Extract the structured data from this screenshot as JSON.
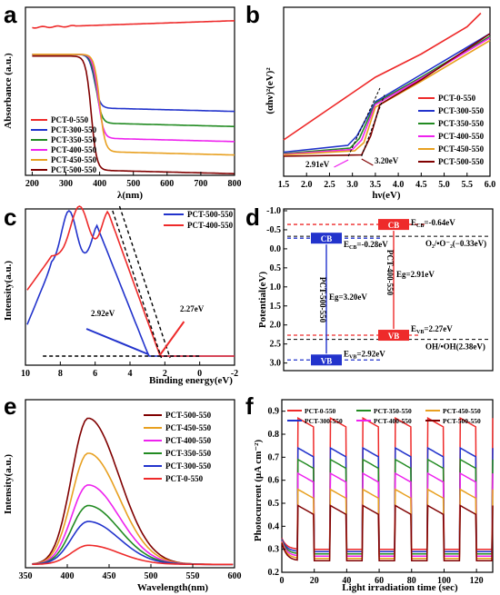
{
  "panels": {
    "a": {
      "letter": "a",
      "xlabel": "λ(nm)",
      "ylabel": "Absorbance (a.u.)",
      "xticks": [
        "200",
        "300",
        "400",
        "500",
        "600",
        "700",
        "800"
      ]
    },
    "b": {
      "letter": "b",
      "xlabel": "hν(eV)",
      "ylabel": "(αhν)²(eV)²",
      "xticks": [
        "1.5",
        "2.0",
        "2.5",
        "3.0",
        "3.5",
        "4.0",
        "4.5",
        "5.0",
        "5.5",
        "6.0"
      ],
      "ann1": "2.91eV",
      "ann2": "3.20eV"
    },
    "c": {
      "letter": "c",
      "xlabel": "Binding energy(eV)",
      "ylabel": "Intensity(a.u.)",
      "xticks": [
        "10",
        "8",
        "6",
        "4",
        "2",
        "0",
        "-2"
      ],
      "ann1": "2.92eV",
      "ann2": "2.27eV"
    },
    "d": {
      "letter": "d",
      "ylabel": "Potential(eV)",
      "yticks": [
        "-1.0",
        "-0.5",
        "0.0",
        "0.5",
        "1.0",
        "1.5",
        "2.0",
        "2.5",
        "3.0"
      ],
      "cb": "CB",
      "vb": "VB",
      "ecb1": "E",
      "ecb1sub": "CB",
      "ecb1val": "=-0.64eV",
      "ecb2": "E",
      "ecb2sub": "CB",
      "ecb2val": "=-0.28eV",
      "evb1": "E",
      "evb1sub": "VB",
      "evb1val": "=2.27eV",
      "evb2": "E",
      "evb2sub": "VB",
      "evb2val": "=2.92eV",
      "eg1": "Eg=3.20eV",
      "eg2": "Eg=2.91eV",
      "s1": "PCT-500-550",
      "s2": "PCT-400-550",
      "o2": "O₂/•O⁻₂(−0.33eV)",
      "oh": "OH/•OH(2.38eV)"
    },
    "e": {
      "letter": "e",
      "xlabel": "Wavelength(nm)",
      "ylabel": "Intensity(a.u.)",
      "xticks": [
        "350",
        "400",
        "450",
        "500",
        "550",
        "600"
      ]
    },
    "f": {
      "letter": "f",
      "xlabel": "Light irradiation time (sec)",
      "ylabel": "Photocurrent (μA cm⁻²)",
      "xticks": [
        "0",
        "20",
        "40",
        "60",
        "80",
        "100",
        "120"
      ],
      "yticks": [
        "0.2",
        "0.3",
        "0.4",
        "0.5",
        "0.6",
        "0.7",
        "0.8",
        "0.9"
      ]
    }
  },
  "chart_data": [
    {
      "type": "line",
      "panel": "a",
      "xlabel": "λ(nm)",
      "ylabel": "Absorbance (a.u.)",
      "xlim": [
        180,
        800
      ],
      "series": [
        {
          "name": "PCT-0-550",
          "color": "#ee2a2a",
          "plateau": 0.88,
          "tail": 0.92,
          "edge": null
        },
        {
          "name": "PCT-300-550",
          "color": "#2233cc",
          "plateau": 0.72,
          "tail": 0.4,
          "edge": 385
        },
        {
          "name": "PCT-350-550",
          "color": "#228b22",
          "plateau": 0.72,
          "tail": 0.31,
          "edge": 390
        },
        {
          "name": "PCT-400-550",
          "color": "#ee22ee",
          "plateau": 0.72,
          "tail": 0.22,
          "edge": 395
        },
        {
          "name": "PCT-450-550",
          "color": "#e8a020",
          "plateau": 0.72,
          "tail": 0.14,
          "edge": 400
        },
        {
          "name": "PCT-500-550",
          "color": "#800000",
          "plateau": 0.71,
          "tail": 0.03,
          "edge": 375
        }
      ]
    },
    {
      "type": "line",
      "panel": "b",
      "xlabel": "hν(eV)",
      "xlim": [
        1.5,
        6.0
      ],
      "series": [
        {
          "name": "PCT-0-550",
          "color": "#ee2a2a",
          "points": [
            [
              1.5,
              0.12
            ],
            [
              2.5,
              0.35
            ],
            [
              3.5,
              0.58
            ],
            [
              4.5,
              0.75
            ],
            [
              5.5,
              0.95
            ],
            [
              5.8,
              1.05
            ]
          ]
        },
        {
          "name": "PCT-300-550",
          "color": "#2233cc",
          "points": [
            [
              1.5,
              0.03
            ],
            [
              2.9,
              0.08
            ],
            [
              3.1,
              0.15
            ],
            [
              3.5,
              0.4
            ],
            [
              4.5,
              0.6
            ],
            [
              6.0,
              0.9
            ]
          ]
        },
        {
          "name": "PCT-350-550",
          "color": "#228b22",
          "points": [
            [
              1.5,
              0.02
            ],
            [
              2.95,
              0.06
            ],
            [
              3.15,
              0.13
            ],
            [
              3.5,
              0.39
            ],
            [
              4.5,
              0.58
            ],
            [
              6.0,
              0.88
            ]
          ]
        },
        {
          "name": "PCT-400-550",
          "color": "#ee22ee",
          "points": [
            [
              1.5,
              0.015
            ],
            [
              3.0,
              0.05
            ],
            [
              3.2,
              0.12
            ],
            [
              3.5,
              0.38
            ],
            [
              4.5,
              0.57
            ],
            [
              6.0,
              0.87
            ]
          ]
        },
        {
          "name": "PCT-450-550",
          "color": "#e8a020",
          "points": [
            [
              1.5,
              0.01
            ],
            [
              3.05,
              0.04
            ],
            [
              3.25,
              0.1
            ],
            [
              3.5,
              0.36
            ],
            [
              4.5,
              0.55
            ],
            [
              6.0,
              0.85
            ]
          ]
        },
        {
          "name": "PCT-500-550",
          "color": "#800000",
          "points": [
            [
              1.5,
              0.0
            ],
            [
              3.2,
              0.01
            ],
            [
              3.4,
              0.15
            ],
            [
              3.6,
              0.38
            ],
            [
              4.5,
              0.56
            ],
            [
              6.0,
              0.9
            ]
          ]
        }
      ]
    },
    {
      "type": "line",
      "panel": "c",
      "xlabel": "Binding energy(eV)",
      "xlim": [
        10,
        -2
      ],
      "series": [
        {
          "name": "PCT-500-550",
          "color": "#2233cc"
        },
        {
          "name": "PCT-400-550",
          "color": "#ee2a2a"
        }
      ]
    },
    {
      "type": "diagram",
      "panel": "d",
      "ylabel": "Potential(eV)",
      "ylim": [
        -1.0,
        3.2
      ],
      "levels": {
        "cb_500": -0.28,
        "vb_500": 2.92,
        "cb_400": -0.64,
        "vb_400": 2.27,
        "o2": -0.33,
        "oh": 2.38
      }
    },
    {
      "type": "line",
      "panel": "e",
      "xlabel": "Wavelength(nm)",
      "xlim": [
        350,
        600
      ],
      "peak_x": 425,
      "series": [
        {
          "name": "PCT-500-550",
          "color": "#800000",
          "peak": 0.92
        },
        {
          "name": "PCT-450-550",
          "color": "#e8a020",
          "peak": 0.7
        },
        {
          "name": "PCT-400-550",
          "color": "#ee22ee",
          "peak": 0.5
        },
        {
          "name": "PCT-350-550",
          "color": "#228b22",
          "peak": 0.37
        },
        {
          "name": "PCT-300-550",
          "color": "#2233cc",
          "peak": 0.27
        },
        {
          "name": "PCT-0-550",
          "color": "#ee2a2a",
          "peak": 0.12
        }
      ]
    },
    {
      "type": "line",
      "panel": "f",
      "xlabel": "Light irradiation time (sec)",
      "ylabel": "Photocurrent (μA cm⁻²)",
      "xlim": [
        0,
        130
      ],
      "ylim": [
        0.2,
        0.95
      ],
      "series": [
        {
          "name": "PCT-0-550",
          "color": "#ee2a2a",
          "on": 0.87,
          "off": 0.3
        },
        {
          "name": "PCT-300-550",
          "color": "#2233cc",
          "on": 0.74,
          "off": 0.29
        },
        {
          "name": "PCT-350-550",
          "color": "#228b22",
          "on": 0.69,
          "off": 0.28
        },
        {
          "name": "PCT-400-550",
          "color": "#ee22ee",
          "on": 0.63,
          "off": 0.27
        },
        {
          "name": "PCT-450-550",
          "color": "#e8a020",
          "on": 0.56,
          "off": 0.26
        },
        {
          "name": "PCT-500-550",
          "color": "#800000",
          "on": 0.49,
          "off": 0.25
        }
      ]
    }
  ]
}
